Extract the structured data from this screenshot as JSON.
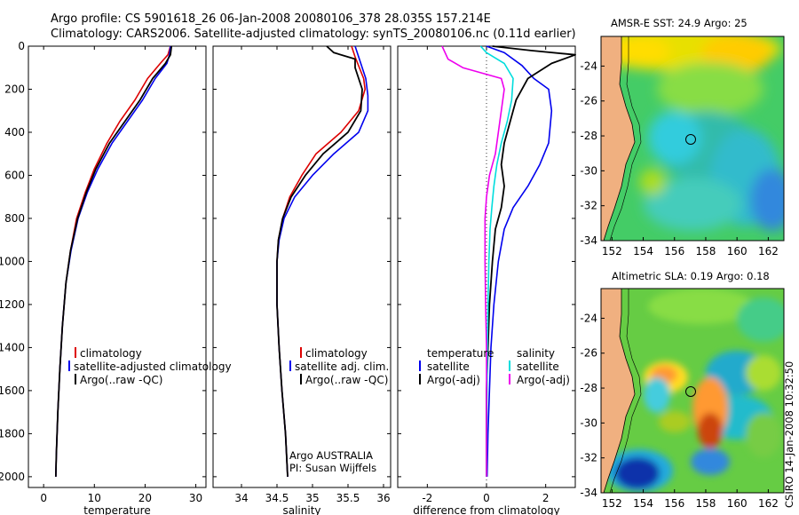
{
  "figure": {
    "title_line1": "Argo profile: CS 5901618_26 06-Jan-2008 20080106_378 28.035S 157.214E",
    "title_line2": "Climatology: CARS2006. Satellite-adjusted climatology: synTS_20080106.nc (0.11d earlier)",
    "side_label": "CSIRO 14-Jan-2008 10:32:50",
    "owner_line1": "Argo AUSTRALIA",
    "owner_line2": "PI: Susan Wijffels"
  },
  "colors": {
    "climatology": "#dd0000",
    "satellite": "#0000ee",
    "argo": "#000000",
    "cyan": "#00dddd",
    "magenta": "#ee00ee"
  },
  "chart_data": [
    {
      "type": "line",
      "panel": "temperature",
      "xlabel": "temperature",
      "ylabel": "",
      "xlim": [
        -3,
        32
      ],
      "ylim": [
        2050,
        0
      ],
      "xticks": [
        "0",
        "10",
        "20",
        "30"
      ],
      "yticks": [
        "0",
        "200",
        "400",
        "600",
        "800",
        "1000",
        "1200",
        "1400",
        "1600",
        "1800",
        "2000"
      ],
      "legend": [
        "climatology",
        "satellite-adjusted climatology",
        "Argo(..raw -QC)"
      ],
      "series": [
        {
          "name": "climatology",
          "color": "#dd0000",
          "points": [
            [
              25.0,
              0
            ],
            [
              24.5,
              40
            ],
            [
              23.0,
              80
            ],
            [
              20.5,
              150
            ],
            [
              18.0,
              250
            ],
            [
              15.0,
              350
            ],
            [
              12.5,
              450
            ],
            [
              10.0,
              570
            ],
            [
              8.2,
              680
            ],
            [
              6.5,
              800
            ],
            [
              5.3,
              950
            ],
            [
              4.4,
              1100
            ],
            [
              3.7,
              1300
            ],
            [
              3.2,
              1500
            ],
            [
              2.8,
              1700
            ],
            [
              2.5,
              1900
            ],
            [
              2.4,
              2000
            ]
          ]
        },
        {
          "name": "satellite-adjusted climatology",
          "color": "#0000ee",
          "points": [
            [
              25.0,
              0
            ],
            [
              24.8,
              40
            ],
            [
              24.3,
              80
            ],
            [
              22.0,
              150
            ],
            [
              19.5,
              250
            ],
            [
              16.5,
              350
            ],
            [
              13.5,
              450
            ],
            [
              10.7,
              570
            ],
            [
              8.6,
              680
            ],
            [
              6.8,
              800
            ],
            [
              5.4,
              950
            ],
            [
              4.4,
              1100
            ],
            [
              3.7,
              1300
            ],
            [
              3.2,
              1500
            ],
            [
              2.8,
              1700
            ],
            [
              2.5,
              1900
            ],
            [
              2.4,
              2000
            ]
          ]
        },
        {
          "name": "Argo(..raw -QC)",
          "color": "#000000",
          "points": [
            [
              25.2,
              0
            ],
            [
              25.0,
              40
            ],
            [
              24.0,
              80
            ],
            [
              21.5,
              150
            ],
            [
              19.0,
              250
            ],
            [
              16.0,
              350
            ],
            [
              13.0,
              450
            ],
            [
              10.3,
              570
            ],
            [
              8.4,
              680
            ],
            [
              6.7,
              800
            ],
            [
              5.3,
              950
            ],
            [
              4.4,
              1100
            ],
            [
              3.7,
              1300
            ],
            [
              3.2,
              1500
            ],
            [
              2.8,
              1700
            ],
            [
              2.5,
              1900
            ],
            [
              2.4,
              2000
            ]
          ]
        }
      ]
    },
    {
      "type": "line",
      "panel": "salinity",
      "xlabel": "salinity",
      "xlim": [
        33.6,
        36.1
      ],
      "ylim": [
        2050,
        0
      ],
      "xticks": [
        "34",
        "34.5",
        "35",
        "35.5",
        "36"
      ],
      "legend": [
        "climatology",
        "satellite adj. clim.",
        "Argo(..raw -QC)"
      ],
      "series": [
        {
          "name": "climatology",
          "color": "#dd0000",
          "points": [
            [
              35.55,
              0
            ],
            [
              35.6,
              50
            ],
            [
              35.72,
              150
            ],
            [
              35.74,
              200
            ],
            [
              35.65,
              300
            ],
            [
              35.4,
              400
            ],
            [
              35.05,
              500
            ],
            [
              34.85,
              600
            ],
            [
              34.68,
              700
            ],
            [
              34.58,
              800
            ],
            [
              34.52,
              900
            ],
            [
              34.5,
              1000
            ],
            [
              34.5,
              1200
            ],
            [
              34.53,
              1400
            ],
            [
              34.57,
              1600
            ],
            [
              34.62,
              1800
            ],
            [
              34.65,
              2000
            ]
          ]
        },
        {
          "name": "satellite adj. clim.",
          "color": "#0000ee",
          "points": [
            [
              35.6,
              0
            ],
            [
              35.65,
              50
            ],
            [
              35.75,
              150
            ],
            [
              35.78,
              230
            ],
            [
              35.78,
              300
            ],
            [
              35.65,
              400
            ],
            [
              35.3,
              500
            ],
            [
              35.0,
              600
            ],
            [
              34.75,
              700
            ],
            [
              34.6,
              800
            ],
            [
              34.53,
              900
            ],
            [
              34.5,
              1000
            ],
            [
              34.5,
              1200
            ],
            [
              34.53,
              1400
            ],
            [
              34.57,
              1600
            ],
            [
              34.62,
              1800
            ],
            [
              34.65,
              2000
            ]
          ]
        },
        {
          "name": "Argo(..raw -QC)",
          "color": "#000000",
          "points": [
            [
              35.2,
              0
            ],
            [
              35.3,
              30
            ],
            [
              35.6,
              60
            ],
            [
              35.6,
              100
            ],
            [
              35.7,
              200
            ],
            [
              35.68,
              300
            ],
            [
              35.5,
              400
            ],
            [
              35.15,
              500
            ],
            [
              34.9,
              600
            ],
            [
              34.7,
              700
            ],
            [
              34.58,
              800
            ],
            [
              34.52,
              900
            ],
            [
              34.5,
              1000
            ],
            [
              34.5,
              1200
            ],
            [
              34.53,
              1400
            ],
            [
              34.57,
              1600
            ],
            [
              34.62,
              1800
            ],
            [
              34.65,
              2000
            ]
          ]
        }
      ]
    },
    {
      "type": "line",
      "panel": "difference",
      "xlabel": "difference from climatology",
      "xlim": [
        -3,
        3
      ],
      "ylim": [
        2050,
        0
      ],
      "xticks": [
        "-2",
        "0",
        "2"
      ],
      "legend_titles": [
        "temperature",
        "salinity"
      ],
      "legend": [
        "satellite",
        "Argo(-adj)",
        "satellite",
        "Argo(-adj)"
      ],
      "series": [
        {
          "name": "satellite",
          "group": "temperature",
          "color": "#0000ee",
          "points": [
            [
              0.0,
              0
            ],
            [
              0.6,
              30
            ],
            [
              1.2,
              90
            ],
            [
              1.6,
              150
            ],
            [
              2.1,
              200
            ],
            [
              2.2,
              300
            ],
            [
              2.1,
              450
            ],
            [
              1.8,
              550
            ],
            [
              1.4,
              650
            ],
            [
              0.9,
              750
            ],
            [
              0.6,
              850
            ],
            [
              0.4,
              1000
            ],
            [
              0.25,
              1200
            ],
            [
              0.15,
              1400
            ],
            [
              0.1,
              1600
            ],
            [
              0.05,
              1800
            ],
            [
              0.02,
              2000
            ]
          ]
        },
        {
          "name": "Argo(-adj)",
          "group": "temperature",
          "color": "#000000",
          "points": [
            [
              0.2,
              0
            ],
            [
              1.5,
              20
            ],
            [
              3.0,
              40
            ],
            [
              2.2,
              80
            ],
            [
              1.4,
              150
            ],
            [
              1.0,
              250
            ],
            [
              0.8,
              350
            ],
            [
              0.6,
              450
            ],
            [
              0.5,
              550
            ],
            [
              0.6,
              650
            ],
            [
              0.5,
              750
            ],
            [
              0.3,
              850
            ],
            [
              0.2,
              1000
            ],
            [
              0.1,
              1200
            ],
            [
              0.05,
              1400
            ],
            [
              0.0,
              1600
            ],
            [
              0.0,
              1800
            ],
            [
              0.0,
              2000
            ]
          ]
        },
        {
          "name": "satellite",
          "group": "salinity",
          "color": "#00dddd",
          "points": [
            [
              -0.2,
              0
            ],
            [
              0.0,
              30
            ],
            [
              0.6,
              80
            ],
            [
              0.9,
              150
            ],
            [
              0.85,
              250
            ],
            [
              0.7,
              350
            ],
            [
              0.5,
              450
            ],
            [
              0.35,
              550
            ],
            [
              0.25,
              650
            ],
            [
              0.18,
              750
            ],
            [
              0.12,
              850
            ],
            [
              0.08,
              1000
            ],
            [
              0.05,
              1200
            ],
            [
              0.03,
              1400
            ],
            [
              0.02,
              1600
            ],
            [
              0.01,
              1800
            ],
            [
              0.0,
              2000
            ]
          ]
        },
        {
          "name": "Argo(-adj)",
          "group": "salinity",
          "color": "#ee00ee",
          "points": [
            [
              -1.5,
              0
            ],
            [
              -1.3,
              60
            ],
            [
              -0.8,
              100
            ],
            [
              0.5,
              150
            ],
            [
              0.6,
              200
            ],
            [
              0.5,
              300
            ],
            [
              0.4,
              400
            ],
            [
              0.3,
              500
            ],
            [
              0.1,
              600
            ],
            [
              0.0,
              700
            ],
            [
              -0.05,
              800
            ],
            [
              -0.05,
              1000
            ],
            [
              -0.03,
              1200
            ],
            [
              0.0,
              1400
            ],
            [
              0.0,
              1600
            ],
            [
              0.0,
              1800
            ],
            [
              0.0,
              2000
            ]
          ]
        }
      ]
    },
    {
      "type": "heatmap",
      "panel": "sst-map",
      "title": "AMSR-E SST: 24.9 Argo: 25",
      "xticks": [
        "152",
        "154",
        "156",
        "158",
        "160",
        "162"
      ],
      "yticks": [
        "-24",
        "-26",
        "-28",
        "-30",
        "-32",
        "-34"
      ],
      "marker": [
        157.214,
        -28.035
      ]
    },
    {
      "type": "heatmap",
      "panel": "sla-map",
      "title": "Altimetric SLA: 0.19 Argo: 0.18",
      "xticks": [
        "152",
        "154",
        "156",
        "158",
        "160",
        "162"
      ],
      "yticks": [
        "-24",
        "-26",
        "-28",
        "-30",
        "-32",
        "-34"
      ],
      "marker": [
        157.214,
        -28.035
      ]
    }
  ]
}
